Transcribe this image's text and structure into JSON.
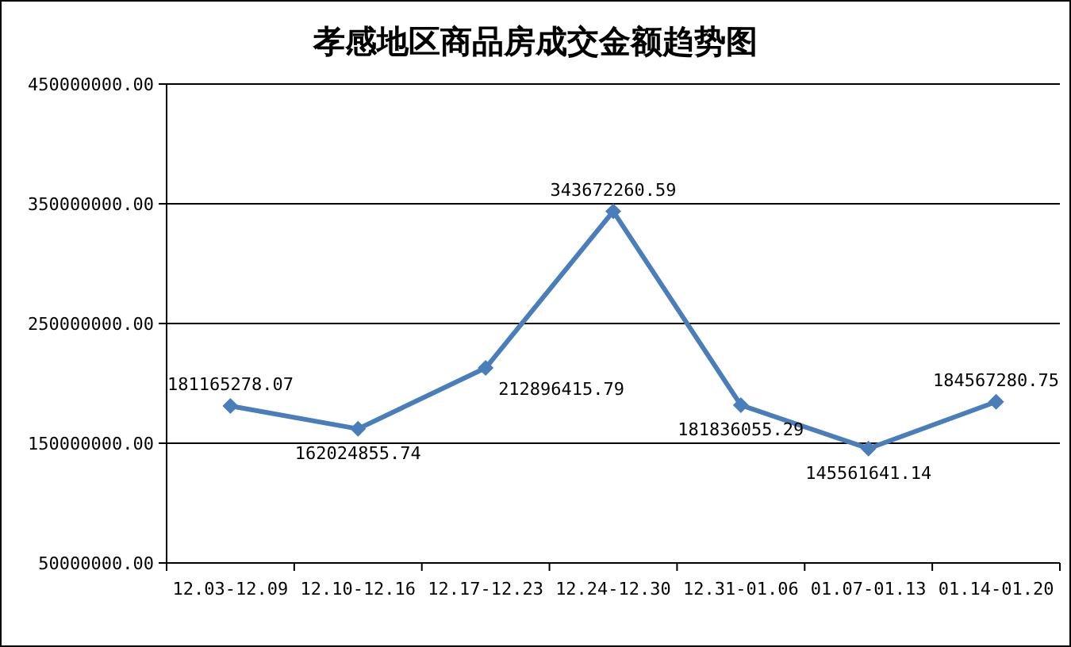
{
  "chart_data": {
    "type": "line",
    "title": "孝感地区商品房成交金额趋势图",
    "categories": [
      "12.03-12.09",
      "12.10-12.16",
      "12.17-12.23",
      "12.24-12.30",
      "12.31-01.06",
      "01.07-01.13",
      "01.14-01.20"
    ],
    "series": [
      {
        "color": "#4a7ebb",
        "values": [
          181165278.07,
          162024855.74,
          212896415.79,
          343672260.59,
          181836055.29,
          145561641.14,
          184567280.75
        ]
      }
    ],
    "ylim": [
      50000000,
      450000000
    ],
    "yticks": [
      {
        "value": 50000000,
        "label": "50000000.00"
      },
      {
        "value": 150000000,
        "label": "150000000.00"
      },
      {
        "value": 250000000,
        "label": "250000000.00"
      },
      {
        "value": 350000000,
        "label": "350000000.00"
      },
      {
        "value": 450000000,
        "label": "450000000.00"
      }
    ],
    "grid": "y",
    "marker": "diamond",
    "line_style": "solid",
    "data_labels": true
  }
}
